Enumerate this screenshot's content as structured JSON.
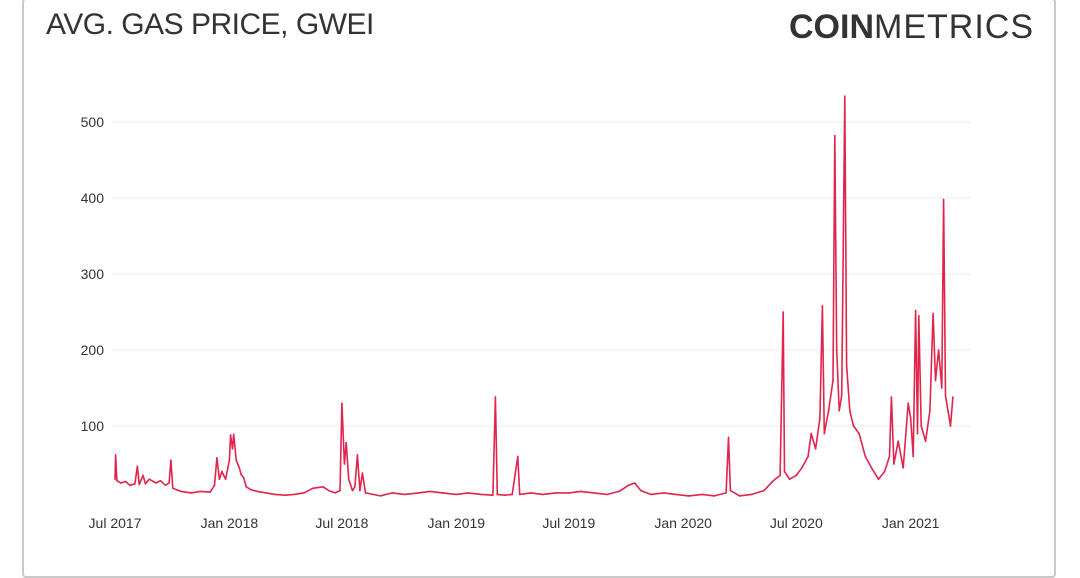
{
  "header": {
    "title": "AVG. GAS PRICE, GWEI",
    "brand_bold": "COIN",
    "brand_light": "METRICS"
  },
  "colors": {
    "series": "#e0244b",
    "grid": "#eeeeee",
    "text": "#333333"
  },
  "chart_data": {
    "type": "line",
    "title": "AVG. GAS PRICE, GWEI",
    "xlabel": "",
    "ylabel": "",
    "ylim": [
      0,
      550
    ],
    "xlim": [
      "2017-07-01",
      "2021-03-31"
    ],
    "y_ticks": [
      100,
      200,
      300,
      400,
      500
    ],
    "x_ticks": [
      {
        "date": "2017-07-01",
        "label": "Jul 2017"
      },
      {
        "date": "2018-01-01",
        "label": "Jan 2018"
      },
      {
        "date": "2018-07-01",
        "label": "Jul 2018"
      },
      {
        "date": "2019-01-01",
        "label": "Jan 2019"
      },
      {
        "date": "2019-07-01",
        "label": "Jul 2019"
      },
      {
        "date": "2020-01-01",
        "label": "Jan 2020"
      },
      {
        "date": "2020-07-01",
        "label": "Jul 2020"
      },
      {
        "date": "2021-01-01",
        "label": "Jan 2021"
      }
    ],
    "grid": true,
    "legend": "none",
    "series": [
      {
        "points": [
          [
            "2017-07-01",
            30
          ],
          [
            "2017-07-02",
            62
          ],
          [
            "2017-07-04",
            28
          ],
          [
            "2017-07-10",
            25
          ],
          [
            "2017-07-18",
            27
          ],
          [
            "2017-07-25",
            22
          ],
          [
            "2017-08-02",
            24
          ],
          [
            "2017-08-06",
            47
          ],
          [
            "2017-08-09",
            23
          ],
          [
            "2017-08-15",
            35
          ],
          [
            "2017-08-19",
            24
          ],
          [
            "2017-08-25",
            30
          ],
          [
            "2017-09-05",
            25
          ],
          [
            "2017-09-12",
            28
          ],
          [
            "2017-09-20",
            22
          ],
          [
            "2017-09-26",
            25
          ],
          [
            "2017-09-29",
            55
          ],
          [
            "2017-10-02",
            18
          ],
          [
            "2017-10-15",
            14
          ],
          [
            "2017-11-01",
            12
          ],
          [
            "2017-11-15",
            14
          ],
          [
            "2017-12-01",
            13
          ],
          [
            "2017-12-08",
            22
          ],
          [
            "2017-12-12",
            58
          ],
          [
            "2017-12-16",
            30
          ],
          [
            "2017-12-20",
            40
          ],
          [
            "2017-12-26",
            30
          ],
          [
            "2018-01-01",
            55
          ],
          [
            "2018-01-03",
            88
          ],
          [
            "2018-01-06",
            70
          ],
          [
            "2018-01-08",
            89
          ],
          [
            "2018-01-12",
            55
          ],
          [
            "2018-01-17",
            45
          ],
          [
            "2018-01-20",
            36
          ],
          [
            "2018-01-24",
            32
          ],
          [
            "2018-01-28",
            20
          ],
          [
            "2018-02-05",
            16
          ],
          [
            "2018-02-15",
            14
          ],
          [
            "2018-03-01",
            12
          ],
          [
            "2018-03-15",
            10
          ],
          [
            "2018-04-01",
            9
          ],
          [
            "2018-04-15",
            10
          ],
          [
            "2018-05-01",
            12
          ],
          [
            "2018-05-15",
            18
          ],
          [
            "2018-06-01",
            20
          ],
          [
            "2018-06-10",
            15
          ],
          [
            "2018-06-20",
            12
          ],
          [
            "2018-06-28",
            15
          ],
          [
            "2018-07-01",
            130
          ],
          [
            "2018-07-05",
            50
          ],
          [
            "2018-07-08",
            78
          ],
          [
            "2018-07-12",
            30
          ],
          [
            "2018-07-18",
            15
          ],
          [
            "2018-07-22",
            20
          ],
          [
            "2018-07-26",
            62
          ],
          [
            "2018-07-30",
            15
          ],
          [
            "2018-08-03",
            38
          ],
          [
            "2018-08-08",
            12
          ],
          [
            "2018-08-20",
            10
          ],
          [
            "2018-09-01",
            8
          ],
          [
            "2018-09-20",
            12
          ],
          [
            "2018-10-10",
            10
          ],
          [
            "2018-11-01",
            12
          ],
          [
            "2018-11-20",
            14
          ],
          [
            "2018-12-10",
            12
          ],
          [
            "2019-01-01",
            10
          ],
          [
            "2019-01-20",
            12
          ],
          [
            "2019-02-10",
            10
          ],
          [
            "2019-03-01",
            9
          ],
          [
            "2019-03-05",
            138
          ],
          [
            "2019-03-08",
            10
          ],
          [
            "2019-03-20",
            9
          ],
          [
            "2019-04-01",
            10
          ],
          [
            "2019-04-10",
            60
          ],
          [
            "2019-04-13",
            10
          ],
          [
            "2019-05-01",
            12
          ],
          [
            "2019-05-20",
            10
          ],
          [
            "2019-06-10",
            12
          ],
          [
            "2019-07-01",
            12
          ],
          [
            "2019-07-20",
            14
          ],
          [
            "2019-08-10",
            12
          ],
          [
            "2019-09-01",
            10
          ],
          [
            "2019-09-20",
            14
          ],
          [
            "2019-10-05",
            22
          ],
          [
            "2019-10-15",
            25
          ],
          [
            "2019-10-25",
            15
          ],
          [
            "2019-11-10",
            10
          ],
          [
            "2019-12-01",
            12
          ],
          [
            "2019-12-20",
            10
          ],
          [
            "2020-01-10",
            8
          ],
          [
            "2020-02-01",
            10
          ],
          [
            "2020-02-20",
            8
          ],
          [
            "2020-03-10",
            12
          ],
          [
            "2020-03-14",
            85
          ],
          [
            "2020-03-17",
            15
          ],
          [
            "2020-04-01",
            8
          ],
          [
            "2020-04-20",
            10
          ],
          [
            "2020-05-10",
            15
          ],
          [
            "2020-05-25",
            28
          ],
          [
            "2020-06-05",
            35
          ],
          [
            "2020-06-10",
            250
          ],
          [
            "2020-06-12",
            40
          ],
          [
            "2020-06-20",
            30
          ],
          [
            "2020-07-01",
            35
          ],
          [
            "2020-07-10",
            45
          ],
          [
            "2020-07-20",
            60
          ],
          [
            "2020-07-25",
            90
          ],
          [
            "2020-08-01",
            70
          ],
          [
            "2020-08-08",
            110
          ],
          [
            "2020-08-12",
            258
          ],
          [
            "2020-08-15",
            90
          ],
          [
            "2020-08-22",
            120
          ],
          [
            "2020-08-29",
            160
          ],
          [
            "2020-09-01",
            482
          ],
          [
            "2020-09-04",
            200
          ],
          [
            "2020-09-08",
            120
          ],
          [
            "2020-09-12",
            140
          ],
          [
            "2020-09-17",
            534
          ],
          [
            "2020-09-20",
            180
          ],
          [
            "2020-09-25",
            120
          ],
          [
            "2020-10-01",
            100
          ],
          [
            "2020-10-10",
            90
          ],
          [
            "2020-10-20",
            60
          ],
          [
            "2020-10-30",
            45
          ],
          [
            "2020-11-10",
            30
          ],
          [
            "2020-11-20",
            40
          ],
          [
            "2020-11-28",
            60
          ],
          [
            "2020-12-01",
            138
          ],
          [
            "2020-12-05",
            50
          ],
          [
            "2020-12-12",
            80
          ],
          [
            "2020-12-20",
            45
          ],
          [
            "2020-12-28",
            130
          ],
          [
            "2021-01-01",
            110
          ],
          [
            "2021-01-05",
            60
          ],
          [
            "2021-01-09",
            252
          ],
          [
            "2021-01-12",
            90
          ],
          [
            "2021-01-14",
            245
          ],
          [
            "2021-01-18",
            100
          ],
          [
            "2021-01-25",
            80
          ],
          [
            "2021-02-01",
            120
          ],
          [
            "2021-02-06",
            248
          ],
          [
            "2021-02-10",
            160
          ],
          [
            "2021-02-15",
            200
          ],
          [
            "2021-02-20",
            150
          ],
          [
            "2021-02-23",
            398
          ],
          [
            "2021-02-26",
            140
          ],
          [
            "2021-03-02",
            120
          ],
          [
            "2021-03-06",
            100
          ],
          [
            "2021-03-10",
            138
          ]
        ]
      }
    ]
  }
}
